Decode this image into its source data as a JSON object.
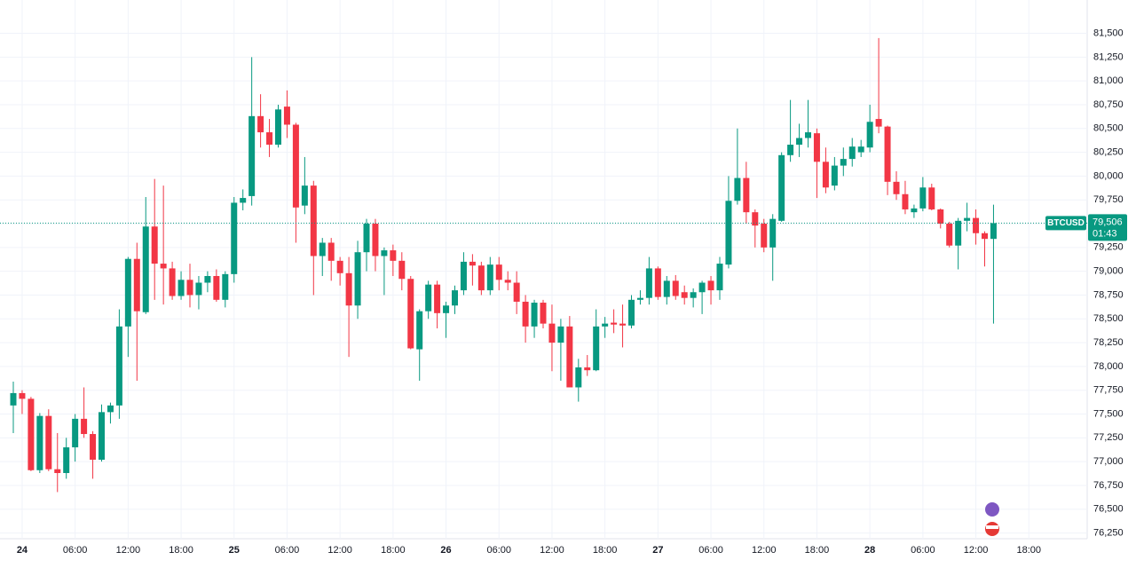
{
  "chart_data": {
    "type": "candlestick",
    "symbol": "BTCUSD",
    "last_price": {
      "value": 79506,
      "label": "79,506"
    },
    "countdown": "01:43",
    "up_color": "#089981",
    "down_color": "#f23645",
    "grid": true,
    "categories": [
      null,
      "24",
      null,
      null,
      null,
      null,
      null,
      "06:00",
      null,
      null,
      null,
      null,
      null,
      "12:00",
      null,
      null,
      null,
      null,
      null,
      "18:00",
      null,
      null,
      null,
      null,
      null,
      "25",
      null,
      null,
      null,
      null,
      null,
      "06:00",
      null,
      null,
      null,
      null,
      null,
      "12:00",
      null,
      null,
      null,
      null,
      null,
      "18:00",
      null,
      null,
      null,
      null,
      null,
      "26",
      null,
      null,
      null,
      null,
      null,
      "06:00",
      null,
      null,
      null,
      null,
      null,
      "12:00",
      null,
      null,
      null,
      null,
      null,
      "18:00",
      null,
      null,
      null,
      null,
      null,
      "27",
      null,
      null,
      null,
      null,
      null,
      "06:00",
      null,
      null,
      null,
      null,
      null,
      "12:00",
      null,
      null,
      null,
      null,
      null,
      "18:00",
      null,
      null,
      null,
      null,
      null,
      "28",
      null,
      null,
      null,
      null,
      null,
      "06:00",
      null,
      null,
      null,
      null,
      null,
      "12:00",
      null,
      null,
      null,
      null,
      null,
      "18:00",
      null,
      null,
      null,
      null,
      null,
      null
    ],
    "open": [
      77590,
      77720,
      77660,
      76910,
      77480,
      76920,
      76880,
      77150,
      77450,
      77290,
      77020,
      77520,
      77590,
      78420,
      79130,
      78570,
      79470,
      79080,
      79030,
      78740,
      78910,
      78750,
      78880,
      78950,
      78700,
      78970,
      79720,
      79790,
      80630,
      80460,
      80330,
      80730,
      80540,
      79690,
      79900,
      79160,
      79300,
      79110,
      78980,
      78640,
      79200,
      79500,
      79160,
      79220,
      79110,
      78920,
      78180,
      78580,
      78860,
      78560,
      78640,
      78800,
      79100,
      79060,
      78800,
      79070,
      78910,
      78880,
      78680,
      78420,
      78670,
      78450,
      78250,
      78420,
      77780,
      77990,
      77960,
      78420,
      78460,
      78450,
      78430,
      78700,
      78720,
      79030,
      78730,
      78900,
      78780,
      78720,
      78780,
      78900,
      78800,
      79070,
      79740,
      79980,
      79620,
      79500,
      79250,
      79530,
      80220,
      80330,
      80400,
      80450,
      80150,
      79900,
      80110,
      80180,
      80250,
      80300,
      80600,
      80520,
      79940,
      79810,
      79620,
      79660,
      79880,
      79650,
      79500,
      79270,
      79530,
      79560,
      79400,
      79340,
      null,
      null,
      null,
      null,
      null,
      null,
      null,
      null,
      null,
      null
    ],
    "high": [
      77840,
      77750,
      77680,
      77510,
      77550,
      77300,
      77250,
      77500,
      77780,
      77320,
      77600,
      77620,
      78600,
      79150,
      79300,
      79780,
      79970,
      79900,
      79100,
      79000,
      79080,
      78950,
      79000,
      79020,
      79000,
      79780,
      79860,
      81250,
      80860,
      80600,
      80750,
      80900,
      80560,
      80200,
      79950,
      79350,
      79350,
      79150,
      79150,
      79320,
      79550,
      79550,
      79250,
      79280,
      79200,
      78950,
      78600,
      78900,
      78900,
      78680,
      78850,
      79200,
      79180,
      79100,
      79150,
      79150,
      79000,
      79000,
      78750,
      78700,
      78700,
      78650,
      78500,
      78530,
      78080,
      78120,
      78600,
      78520,
      78600,
      78650,
      78750,
      78800,
      79150,
      79050,
      78950,
      78960,
      78850,
      78820,
      78900,
      78950,
      79150,
      80000,
      80500,
      80150,
      79650,
      79550,
      79600,
      80250,
      80800,
      80550,
      80800,
      80500,
      80300,
      80200,
      80300,
      80400,
      80380,
      80750,
      81450,
      80530,
      80050,
      79950,
      79700,
      79990,
      79920,
      79660,
      79520,
      79560,
      79720,
      79650,
      79420,
      79700,
      null,
      null,
      null,
      null,
      null,
      null,
      null,
      null,
      null,
      null
    ],
    "low": [
      77300,
      77500,
      76900,
      76880,
      76900,
      76680,
      76820,
      77000,
      77250,
      76820,
      77000,
      77400,
      77450,
      78100,
      77850,
      78550,
      78700,
      78650,
      78700,
      78700,
      78620,
      78600,
      78780,
      78680,
      78620,
      78880,
      79640,
      79690,
      80300,
      80200,
      80300,
      80400,
      79300,
      79600,
      78750,
      78950,
      78900,
      78850,
      78100,
      78500,
      79000,
      79000,
      78750,
      78950,
      78800,
      78180,
      77850,
      78500,
      78400,
      78300,
      78550,
      78750,
      78850,
      78750,
      78750,
      78800,
      78800,
      78550,
      78250,
      78300,
      78400,
      77950,
      77850,
      77780,
      77630,
      77900,
      77950,
      78300,
      78350,
      78200,
      78400,
      78650,
      78650,
      78700,
      78650,
      78700,
      78650,
      78620,
      78550,
      78650,
      78700,
      79030,
      79700,
      79500,
      79250,
      79200,
      78900,
      79520,
      80150,
      80200,
      80300,
      79770,
      79820,
      79850,
      80000,
      80100,
      80200,
      80250,
      80450,
      79800,
      79750,
      79600,
      79560,
      79630,
      79640,
      79450,
      79250,
      79020,
      79420,
      79280,
      79050,
      78450,
      null,
      null,
      null,
      null,
      null,
      null,
      null,
      null,
      null,
      null
    ],
    "close": [
      77720,
      77660,
      76910,
      77480,
      76920,
      76880,
      77150,
      77450,
      77290,
      77020,
      77520,
      77590,
      78420,
      79130,
      78580,
      79470,
      79080,
      79030,
      78740,
      78910,
      78750,
      78880,
      78950,
      78700,
      78970,
      79720,
      79770,
      80630,
      80460,
      80330,
      80700,
      80540,
      79670,
      79900,
      79160,
      79300,
      79110,
      78980,
      78640,
      79200,
      79500,
      79160,
      79220,
      79110,
      78920,
      78190,
      78580,
      78860,
      78560,
      78640,
      78800,
      79100,
      79060,
      78800,
      79070,
      78910,
      78880,
      78680,
      78420,
      78670,
      78450,
      78250,
      78420,
      77780,
      77990,
      77960,
      78420,
      78450,
      78440,
      78430,
      78700,
      78720,
      79030,
      78730,
      78900,
      78740,
      78720,
      78780,
      78880,
      78800,
      79080,
      79740,
      79980,
      79620,
      79480,
      79250,
      79550,
      80220,
      80330,
      80400,
      80460,
      80150,
      79880,
      80110,
      80180,
      80310,
      80310,
      80570,
      80520,
      79940,
      79810,
      79650,
      79660,
      79880,
      79650,
      79500,
      79270,
      79530,
      79560,
      79400,
      79340,
      79506,
      null,
      null,
      null,
      null,
      null,
      null,
      null,
      null,
      null,
      null
    ],
    "ylim": [
      76190,
      81850
    ],
    "yticks": [
      {
        "value": 76250,
        "label": "76,250"
      },
      {
        "value": 76500,
        "label": "76,500"
      },
      {
        "value": 76750,
        "label": "76,750"
      },
      {
        "value": 77000,
        "label": "77,000"
      },
      {
        "value": 77250,
        "label": "77,250"
      },
      {
        "value": 77500,
        "label": "77,500"
      },
      {
        "value": 77750,
        "label": "77,750"
      },
      {
        "value": 78000,
        "label": "78,000"
      },
      {
        "value": 78250,
        "label": "78,250"
      },
      {
        "value": 78500,
        "label": "78,500"
      },
      {
        "value": 78750,
        "label": "78,750"
      },
      {
        "value": 79000,
        "label": "79,000"
      },
      {
        "value": 79250,
        "label": "79,250"
      },
      {
        "value": 79500,
        "label": "79,500"
      },
      {
        "value": 79750,
        "label": "79,750"
      },
      {
        "value": 80000,
        "label": "80,000"
      },
      {
        "value": 80250,
        "label": "80,250"
      },
      {
        "value": 80500,
        "label": "80,500"
      },
      {
        "value": 80750,
        "label": "80,750"
      },
      {
        "value": 81000,
        "label": "81,000"
      },
      {
        "value": 81250,
        "label": "81,250"
      },
      {
        "value": 81500,
        "label": "81,500"
      }
    ]
  }
}
